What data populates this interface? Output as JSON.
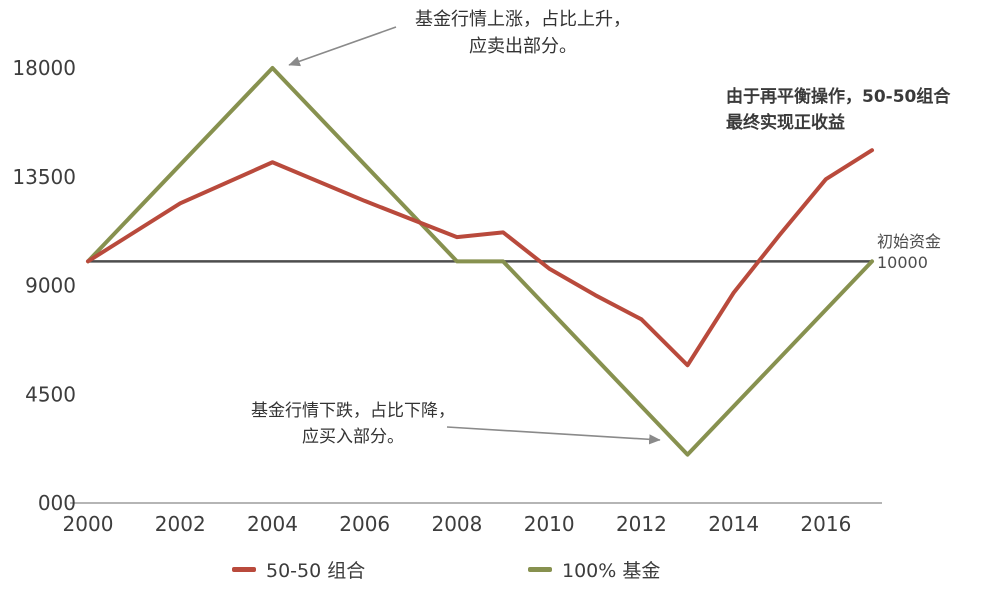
{
  "chart_data": {
    "type": "line",
    "title": "",
    "x_range": [
      2000,
      2017
    ],
    "y_range": [
      0,
      18000
    ],
    "grid": false,
    "legend_position": "bottom",
    "x_ticks": [
      "2000",
      "2002",
      "2004",
      "2006",
      "2008",
      "2010",
      "2012",
      "2014",
      "2016"
    ],
    "y_ticks": [
      "000",
      "4500",
      "9000",
      "13500",
      "18000"
    ],
    "y_tick_values": [
      0,
      4500,
      9000,
      13500,
      18000
    ],
    "series": [
      {
        "name": "100% 基金",
        "color": "#87914f",
        "points": [
          [
            2000,
            10000
          ],
          [
            2004,
            18000
          ],
          [
            2008,
            10000
          ],
          [
            2009,
            10000
          ],
          [
            2013,
            2000
          ],
          [
            2017,
            10000
          ]
        ]
      },
      {
        "name": "50-50 组合",
        "color": "#b94a3c",
        "points": [
          [
            2000,
            10000
          ],
          [
            2002,
            12400
          ],
          [
            2004,
            14100
          ],
          [
            2006,
            12500
          ],
          [
            2008,
            11000
          ],
          [
            2009,
            11200
          ],
          [
            2010,
            9700
          ],
          [
            2011,
            8600
          ],
          [
            2012,
            7600
          ],
          [
            2013,
            5700
          ],
          [
            2014,
            8700
          ],
          [
            2015,
            11100
          ],
          [
            2016,
            13400
          ],
          [
            2017,
            14600
          ]
        ]
      }
    ],
    "baseline": {
      "value": 10000,
      "label_title": "初始资金",
      "label_value": "10000"
    }
  },
  "annotations": {
    "peak": {
      "line1": "基金行情上涨，占比上升，",
      "line2": "应卖出部分。"
    },
    "trough": {
      "line1": "基金行情下跌，占比下降，",
      "line2": "应买入部分。"
    },
    "result": {
      "line1": "由于再平衡操作，50-50组合",
      "line2": "最终实现正收益"
    }
  },
  "legend": {
    "items": [
      {
        "label": "50-50 组合",
        "color": "#b94a3c"
      },
      {
        "label": "100% 基金",
        "color": "#87914f"
      }
    ]
  }
}
